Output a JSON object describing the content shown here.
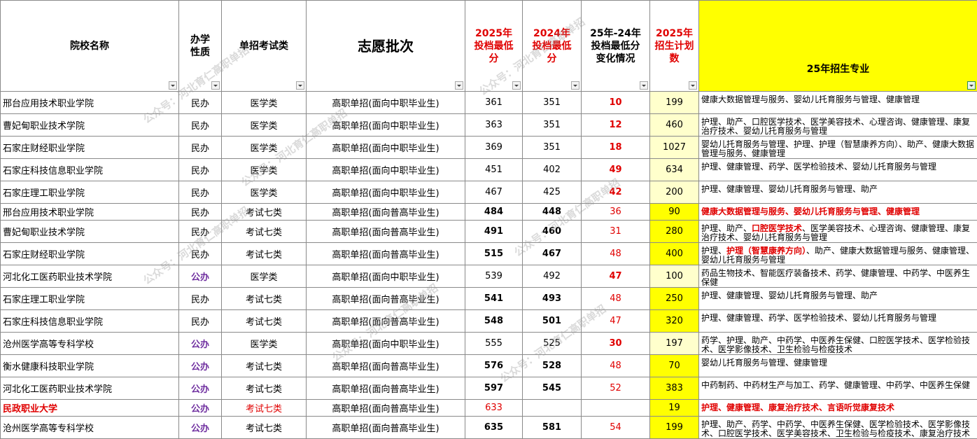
{
  "header": [
    "院校名称",
    "办学性质",
    "单招考试类",
    "志愿批次",
    "2025年投档最低分",
    "2024年投档最低分",
    "25年-24年投档最低分变化情况",
    "2025年招生计划数",
    "25年招生专业"
  ],
  "watermark": "公众号：河北育仁高职单招",
  "rows": [
    {
      "school": "邢台应用技术职业学院",
      "nature": "民办",
      "exam": "医学类",
      "batch": "高职单招(面向中职毕业生)",
      "score2025": 361,
      "score2024": 351,
      "change": 10,
      "plan": 199,
      "majors": [
        "健康大数据管理与服务、婴幼儿托育服务与管理、健康管理"
      ],
      "major_red": [],
      "score_bold": false,
      "plan_fill": "#ffffcc"
    },
    {
      "school": "曹妃甸职业技术学院",
      "nature": "民办",
      "exam": "医学类",
      "batch": "高职单招(面向中职毕业生)",
      "score2025": 363,
      "score2024": 351,
      "change": 12,
      "plan": 460,
      "majors": [
        "护理、助产、口腔医学技术、医学美容技术、心理咨询、健康管理、康复治疗技术、婴幼儿托育服务与管理"
      ],
      "major_red": [],
      "score_bold": false,
      "plan_fill": "#ffffcc"
    },
    {
      "school": "石家庄财经职业学院",
      "nature": "民办",
      "exam": "医学类",
      "batch": "高职单招(面向中职毕业生)",
      "score2025": 369,
      "score2024": 351,
      "change": 18,
      "plan": 1027,
      "majors": [
        "婴幼儿托育服务与管理、护理、护理（智慧康养方向）、助产、健康大数据管理与服务、健康管理"
      ],
      "major_red": [],
      "score_bold": false,
      "plan_fill": "#ffffcc"
    },
    {
      "school": "石家庄科技信息职业学院",
      "nature": "民办",
      "exam": "医学类",
      "batch": "高职单招(面向中职毕业生)",
      "score2025": 451,
      "score2024": 402,
      "change": 49,
      "plan": 634,
      "majors": [
        "护理、健康管理、药学、医学检验技术、婴幼儿托育服务与管理"
      ],
      "major_red": [],
      "score_bold": false,
      "plan_fill": "#ffffcc"
    },
    {
      "school": "石家庄理工职业学院",
      "nature": "民办",
      "exam": "医学类",
      "batch": "高职单招(面向中职毕业生)",
      "score2025": 467,
      "score2024": 425,
      "change": 42,
      "plan": 200,
      "majors": [
        "护理、健康管理、婴幼儿托育服务与管理、助产"
      ],
      "major_red": [],
      "score_bold": false,
      "plan_fill": "#ffffcc"
    },
    {
      "school": "邢台应用技术职业学院",
      "nature": "民办",
      "exam": "考试七类",
      "batch": "高职单招(面向普高毕业生)",
      "score2025": 484,
      "score2024": 448,
      "change": 36,
      "plan": 90,
      "majors": [
        "健康大数据管理与服务、婴幼儿托育服务与管理、健康管理"
      ],
      "major_red": [
        0
      ],
      "score_bold": true,
      "plan_fill": "#ffff00"
    },
    {
      "school": "曹妃甸职业技术学院",
      "nature": "民办",
      "exam": "考试七类",
      "batch": "高职单招(面向普高毕业生)",
      "score2025": 491,
      "score2024": 460,
      "change": 31,
      "plan": 280,
      "majors": [
        "护理、助产、",
        "口腔医学技术",
        "、医学美容技术、心理咨询、健康管理、康复治疗技术、婴幼儿托育服务与管理"
      ],
      "major_red": [
        1
      ],
      "score_bold": true,
      "plan_fill": "#ffff00"
    },
    {
      "school": "石家庄财经职业学院",
      "nature": "民办",
      "exam": "考试七类",
      "batch": "高职单招(面向普高毕业生)",
      "score2025": 515,
      "score2024": 467,
      "change": 48,
      "plan": 400,
      "majors": [
        "护理、",
        "护理（智慧康养方向）",
        "、助产、健康大数据管理与服务、健康管理、婴幼儿托育服务与管理"
      ],
      "major_red": [
        1
      ],
      "score_bold": true,
      "plan_fill": "#ffff00"
    },
    {
      "school": "河北化工医药职业技术学院",
      "nature": "公办",
      "exam": "医学类",
      "batch": "高职单招(面向中职毕业生)",
      "score2025": 539,
      "score2024": 492,
      "change": 47,
      "plan": 100,
      "majors": [
        "药品生物技术、智能医疗装备技术、药学、健康管理、中药学、中医养生保健"
      ],
      "major_red": [],
      "score_bold": false,
      "plan_fill": "#ffffcc"
    },
    {
      "school": "石家庄理工职业学院",
      "nature": "民办",
      "exam": "考试七类",
      "batch": "高职单招(面向普高毕业生)",
      "score2025": 541,
      "score2024": 493,
      "change": 48,
      "plan": 250,
      "majors": [
        "护理、健康管理、婴幼儿托育服务与管理、助产"
      ],
      "major_red": [],
      "score_bold": true,
      "plan_fill": "#ffff00"
    },
    {
      "school": "石家庄科技信息职业学院",
      "nature": "民办",
      "exam": "考试七类",
      "batch": "高职单招(面向普高毕业生)",
      "score2025": 548,
      "score2024": 501,
      "change": 47,
      "plan": 320,
      "majors": [
        "护理、健康管理、药学、医学检验技术、婴幼儿托育服务与管理"
      ],
      "major_red": [],
      "score_bold": true,
      "plan_fill": "#ffff00"
    },
    {
      "school": "沧州医学高等专科学校",
      "nature": "公办",
      "exam": "医学类",
      "batch": "高职单招(面向中职毕业生)",
      "score2025": 555,
      "score2024": 525,
      "change": 30,
      "plan": 197,
      "majors": [
        "药学、护理、助产、中药学、中医养生保健、口腔医学技术、医学检验技术、医学影像技术、卫生检验与检疫技术"
      ],
      "major_red": [],
      "score_bold": false,
      "plan_fill": "#ffffcc"
    },
    {
      "school": "衡水健康科技职业学院",
      "nature": "公办",
      "exam": "考试七类",
      "batch": "高职单招(面向普高毕业生)",
      "score2025": 576,
      "score2024": 528,
      "change": 48,
      "plan": 70,
      "majors": [
        "婴幼儿托育服务与管理、健康管理"
      ],
      "major_red": [],
      "score_bold": true,
      "plan_fill": "#ffff00"
    },
    {
      "school": "河北化工医药职业技术学院",
      "nature": "公办",
      "exam": "考试七类",
      "batch": "高职单招(面向普高毕业生)",
      "score2025": 597,
      "score2024": 545,
      "change": 52,
      "plan": 383,
      "majors": [
        "中药制药、中药材生产与加工、药学、健康管理、中药学、中医养生保健"
      ],
      "major_red": [],
      "score_bold": true,
      "plan_fill": "#ffff00"
    },
    {
      "school": "民政职业大学",
      "nature": "公办",
      "exam": "考试七类",
      "batch": "高职单招(面向普高毕业生)",
      "score2025": 633,
      "score2024": null,
      "change": null,
      "plan": 19,
      "majors": [
        "护理、健康管理、康复治疗技术、言语听觉康复技术"
      ],
      "major_red": [
        0
      ],
      "score_bold": false,
      "plan_fill": "#ffff00",
      "highlight_row": true
    },
    {
      "school": "沧州医学高等专科学校",
      "nature": "公办",
      "exam": "考试七类",
      "batch": "高职单招(面向普高毕业生)",
      "score2025": 635,
      "score2024": 581,
      "change": 54,
      "plan": 199,
      "majors": [
        "护理、助产、药学、中药学、中医养生保健、医学检验技术、医学影像技术、口腔医学技术、医学美容技术、卫生检验与检疫技术、康复治疗技术"
      ],
      "major_red": [],
      "score_bold": true,
      "plan_fill": "#ffff00"
    }
  ]
}
